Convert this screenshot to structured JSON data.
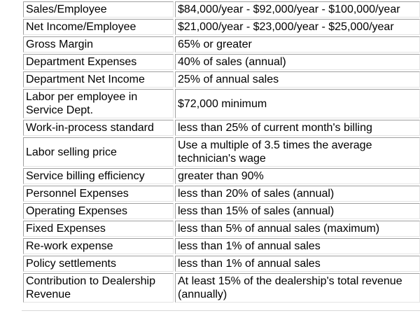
{
  "rows": [
    {
      "label": "Sales/Employee",
      "value": "$84,000/year - $92,000/year - $100,000/year"
    },
    {
      "label": "Net Income/Employee",
      "value": "$21,000/year - $23,000/year - $25,000/year"
    },
    {
      "label": "Gross Margin",
      "value": "65% or greater"
    },
    {
      "label": "Department Expenses",
      "value": "40% of sales (annual)"
    },
    {
      "label": "Department Net Income",
      "value": "25% of annual sales"
    },
    {
      "label": "Labor per employee in Service Dept.",
      "value": "$72,000 minimum"
    },
    {
      "label": "Work-in-process standard",
      "value": "less than 25% of current month's billing"
    },
    {
      "label": "Labor selling price",
      "value": "Use a multiple of 3.5 times the average technician's wage"
    },
    {
      "label": "Service billing efficiency",
      "value": "greater than 90%"
    },
    {
      "label": "Personnel Expenses",
      "value": "less than  20% of sales (annual)"
    },
    {
      "label": "Operating Expenses",
      "value": "less than  15% of sales (annual)"
    },
    {
      "label": "Fixed Expenses",
      "value": "less than 5% of annual sales (maximum)"
    },
    {
      "label": "Re-work expense",
      "value": "less than 1% of annual sales"
    },
    {
      "label": "Policy settlements",
      "value": "less than 1% of annual sales"
    },
    {
      "label": "Contribution to Dealership Revenue",
      "value": "At least 15% of the dealership's total revenue (annually)"
    }
  ]
}
